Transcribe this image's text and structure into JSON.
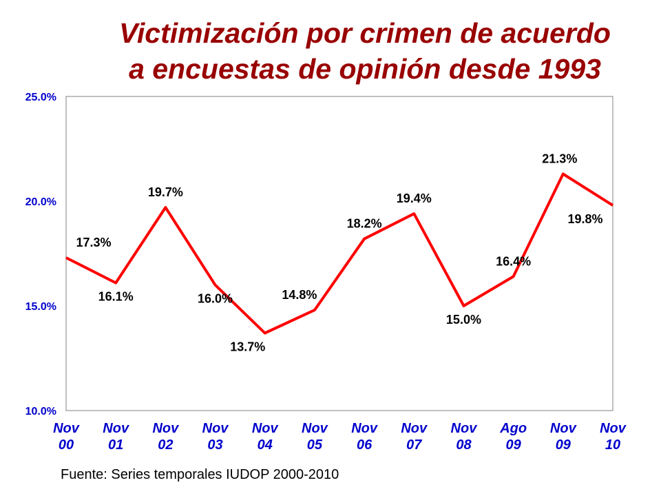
{
  "chart_data": {
    "type": "line",
    "title_line1": "Victimización por crimen de acuerdo",
    "title_line2": "a encuestas de opinión desde 1993",
    "xlabel": "",
    "ylabel": "",
    "ylim": [
      10,
      25
    ],
    "yticks": [
      "25.0%",
      "20.0%",
      "15.0%",
      "10.0%"
    ],
    "ytick_values": [
      25,
      20,
      15,
      10
    ],
    "categories": [
      {
        "line1": "Nov",
        "line2": "00"
      },
      {
        "line1": "Nov",
        "line2": "01"
      },
      {
        "line1": "Nov",
        "line2": "02"
      },
      {
        "line1": "Nov",
        "line2": "03"
      },
      {
        "line1": "Nov",
        "line2": "04"
      },
      {
        "line1": "Nov",
        "line2": "05"
      },
      {
        "line1": "Nov",
        "line2": "06"
      },
      {
        "line1": "Nov",
        "line2": "07"
      },
      {
        "line1": "Nov",
        "line2": "08"
      },
      {
        "line1": "Ago",
        "line2": "09"
      },
      {
        "line1": "Nov",
        "line2": "09"
      },
      {
        "line1": "Nov",
        "line2": "10"
      }
    ],
    "values": [
      17.3,
      16.1,
      19.7,
      16.0,
      13.7,
      14.8,
      18.2,
      19.4,
      15.0,
      16.4,
      21.3,
      19.8
    ],
    "data_labels": [
      "17.3%",
      "16.1%",
      "19.7%",
      "16.0%",
      "13.7%",
      "14.8%",
      "18.2%",
      "19.4%",
      "15.0%",
      "16.4%",
      "21.3%",
      "19.8%"
    ],
    "grid": false,
    "series_color": "#ff0000",
    "axis_label_color": "#0000cc",
    "category_color": "#0000cc"
  },
  "source": "Fuente: Series temporales IUDOP 2000-2010"
}
